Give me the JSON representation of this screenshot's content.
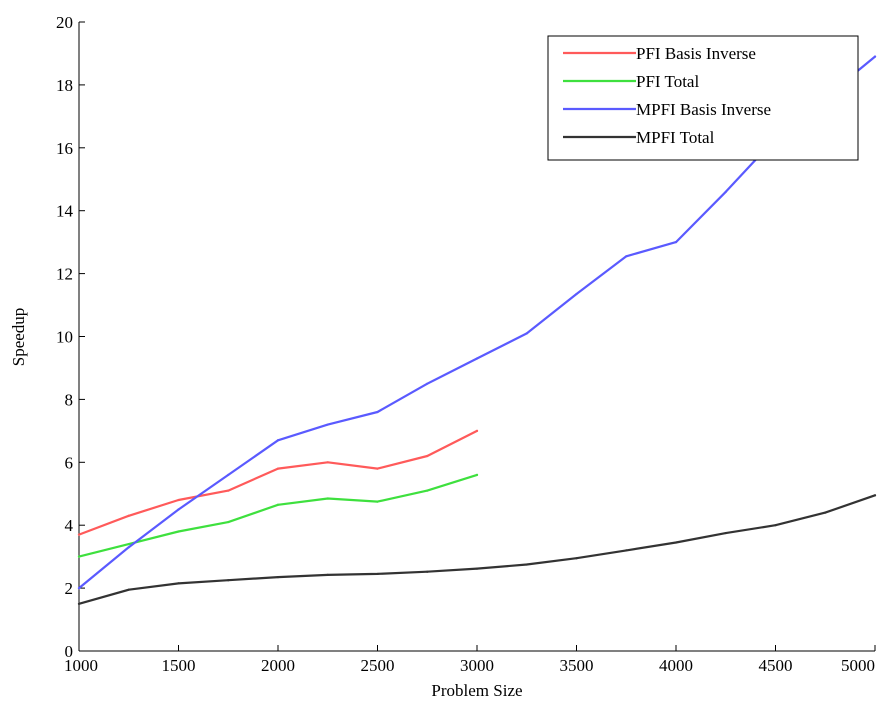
{
  "chart_data": {
    "type": "line",
    "title": "",
    "xlabel": "Problem Size",
    "ylabel": "Speedup",
    "xlim": [
      1000,
      5000
    ],
    "ylim": [
      0,
      20
    ],
    "xticks": [
      1000,
      1500,
      2000,
      2500,
      3000,
      3500,
      4000,
      4500,
      5000
    ],
    "yticks": [
      0,
      2,
      4,
      6,
      8,
      10,
      12,
      14,
      16,
      18,
      20
    ],
    "grid": false,
    "legend_position": "top-right",
    "series": [
      {
        "name": "PFI Basis Inverse",
        "color": "#ff5a5a",
        "x": [
          1000,
          1250,
          1500,
          1750,
          2000,
          2250,
          2500,
          2750,
          3000
        ],
        "y": [
          3.7,
          4.3,
          4.8,
          5.1,
          5.8,
          6.0,
          5.8,
          6.2,
          7.0
        ]
      },
      {
        "name": "PFI Total",
        "color": "#3ee03e",
        "x": [
          1000,
          1250,
          1500,
          1750,
          2000,
          2250,
          2500,
          2750,
          3000
        ],
        "y": [
          3.0,
          3.4,
          3.8,
          4.1,
          4.65,
          4.85,
          4.75,
          5.1,
          5.6
        ]
      },
      {
        "name": "MPFI Basis Inverse",
        "color": "#5a5aff",
        "x": [
          1000,
          1250,
          1500,
          1750,
          2000,
          2250,
          2500,
          2750,
          3000,
          3250,
          3500,
          3750,
          4000,
          4250,
          4500,
          4750,
          5000
        ],
        "y": [
          2.0,
          3.3,
          4.5,
          5.6,
          6.7,
          7.2,
          7.6,
          8.5,
          9.3,
          10.1,
          11.35,
          12.55,
          13.0,
          14.6,
          16.3,
          17.6,
          18.9
        ]
      },
      {
        "name": "MPFI Total",
        "color": "#333333",
        "x": [
          1000,
          1250,
          1500,
          1750,
          2000,
          2250,
          2500,
          2750,
          3000,
          3250,
          3500,
          3750,
          4000,
          4250,
          4500,
          4750,
          5000
        ],
        "y": [
          1.5,
          1.95,
          2.15,
          2.25,
          2.35,
          2.42,
          2.45,
          2.52,
          2.62,
          2.75,
          2.95,
          3.2,
          3.45,
          3.75,
          4.0,
          4.4,
          4.95
        ]
      }
    ]
  }
}
